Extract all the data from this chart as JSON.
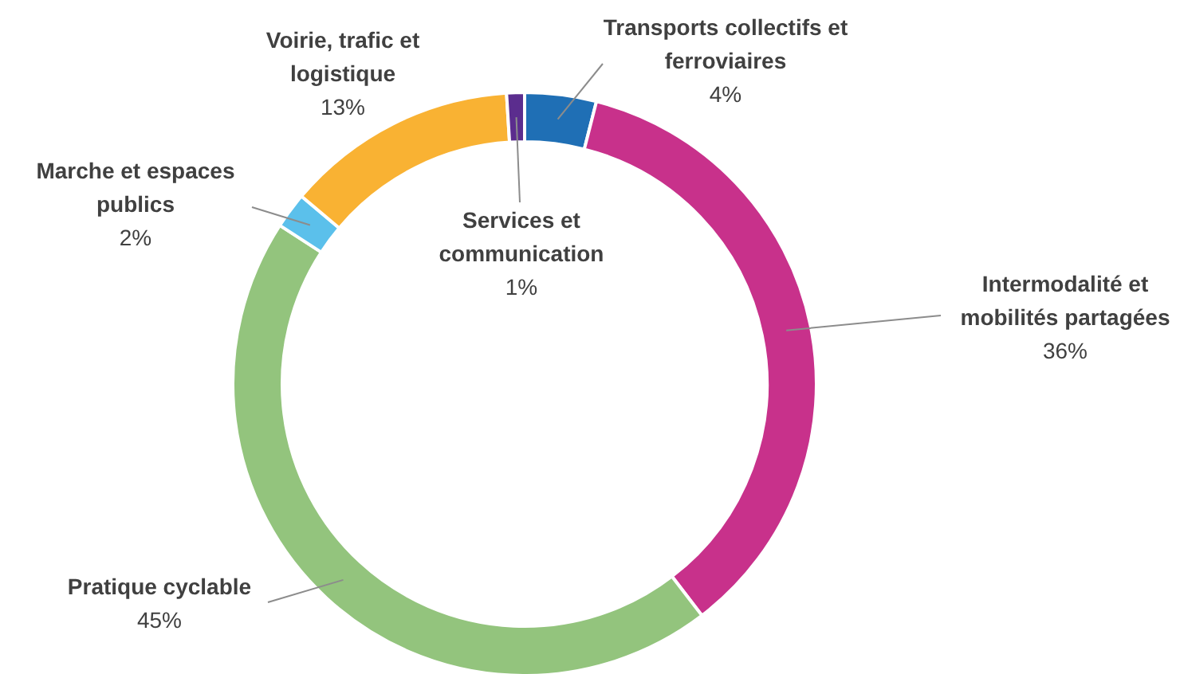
{
  "chart_data": {
    "type": "donut",
    "categories": [
      "Transports collectifs et ferroviaires",
      "Intermodalité et mobilités partagées",
      "Pratique cyclable",
      "Marche et espaces publics",
      "Voirie, trafic et logistique",
      "Services et communication"
    ],
    "values": [
      4,
      36,
      45,
      2,
      13,
      1
    ],
    "value_labels": [
      "4%",
      "36%",
      "45%",
      "2%",
      "13%",
      "1%"
    ],
    "colors": [
      "#1f6fb5",
      "#c8318b",
      "#93c47d",
      "#5bc0eb",
      "#f9b233",
      "#5b2d8e"
    ]
  }
}
